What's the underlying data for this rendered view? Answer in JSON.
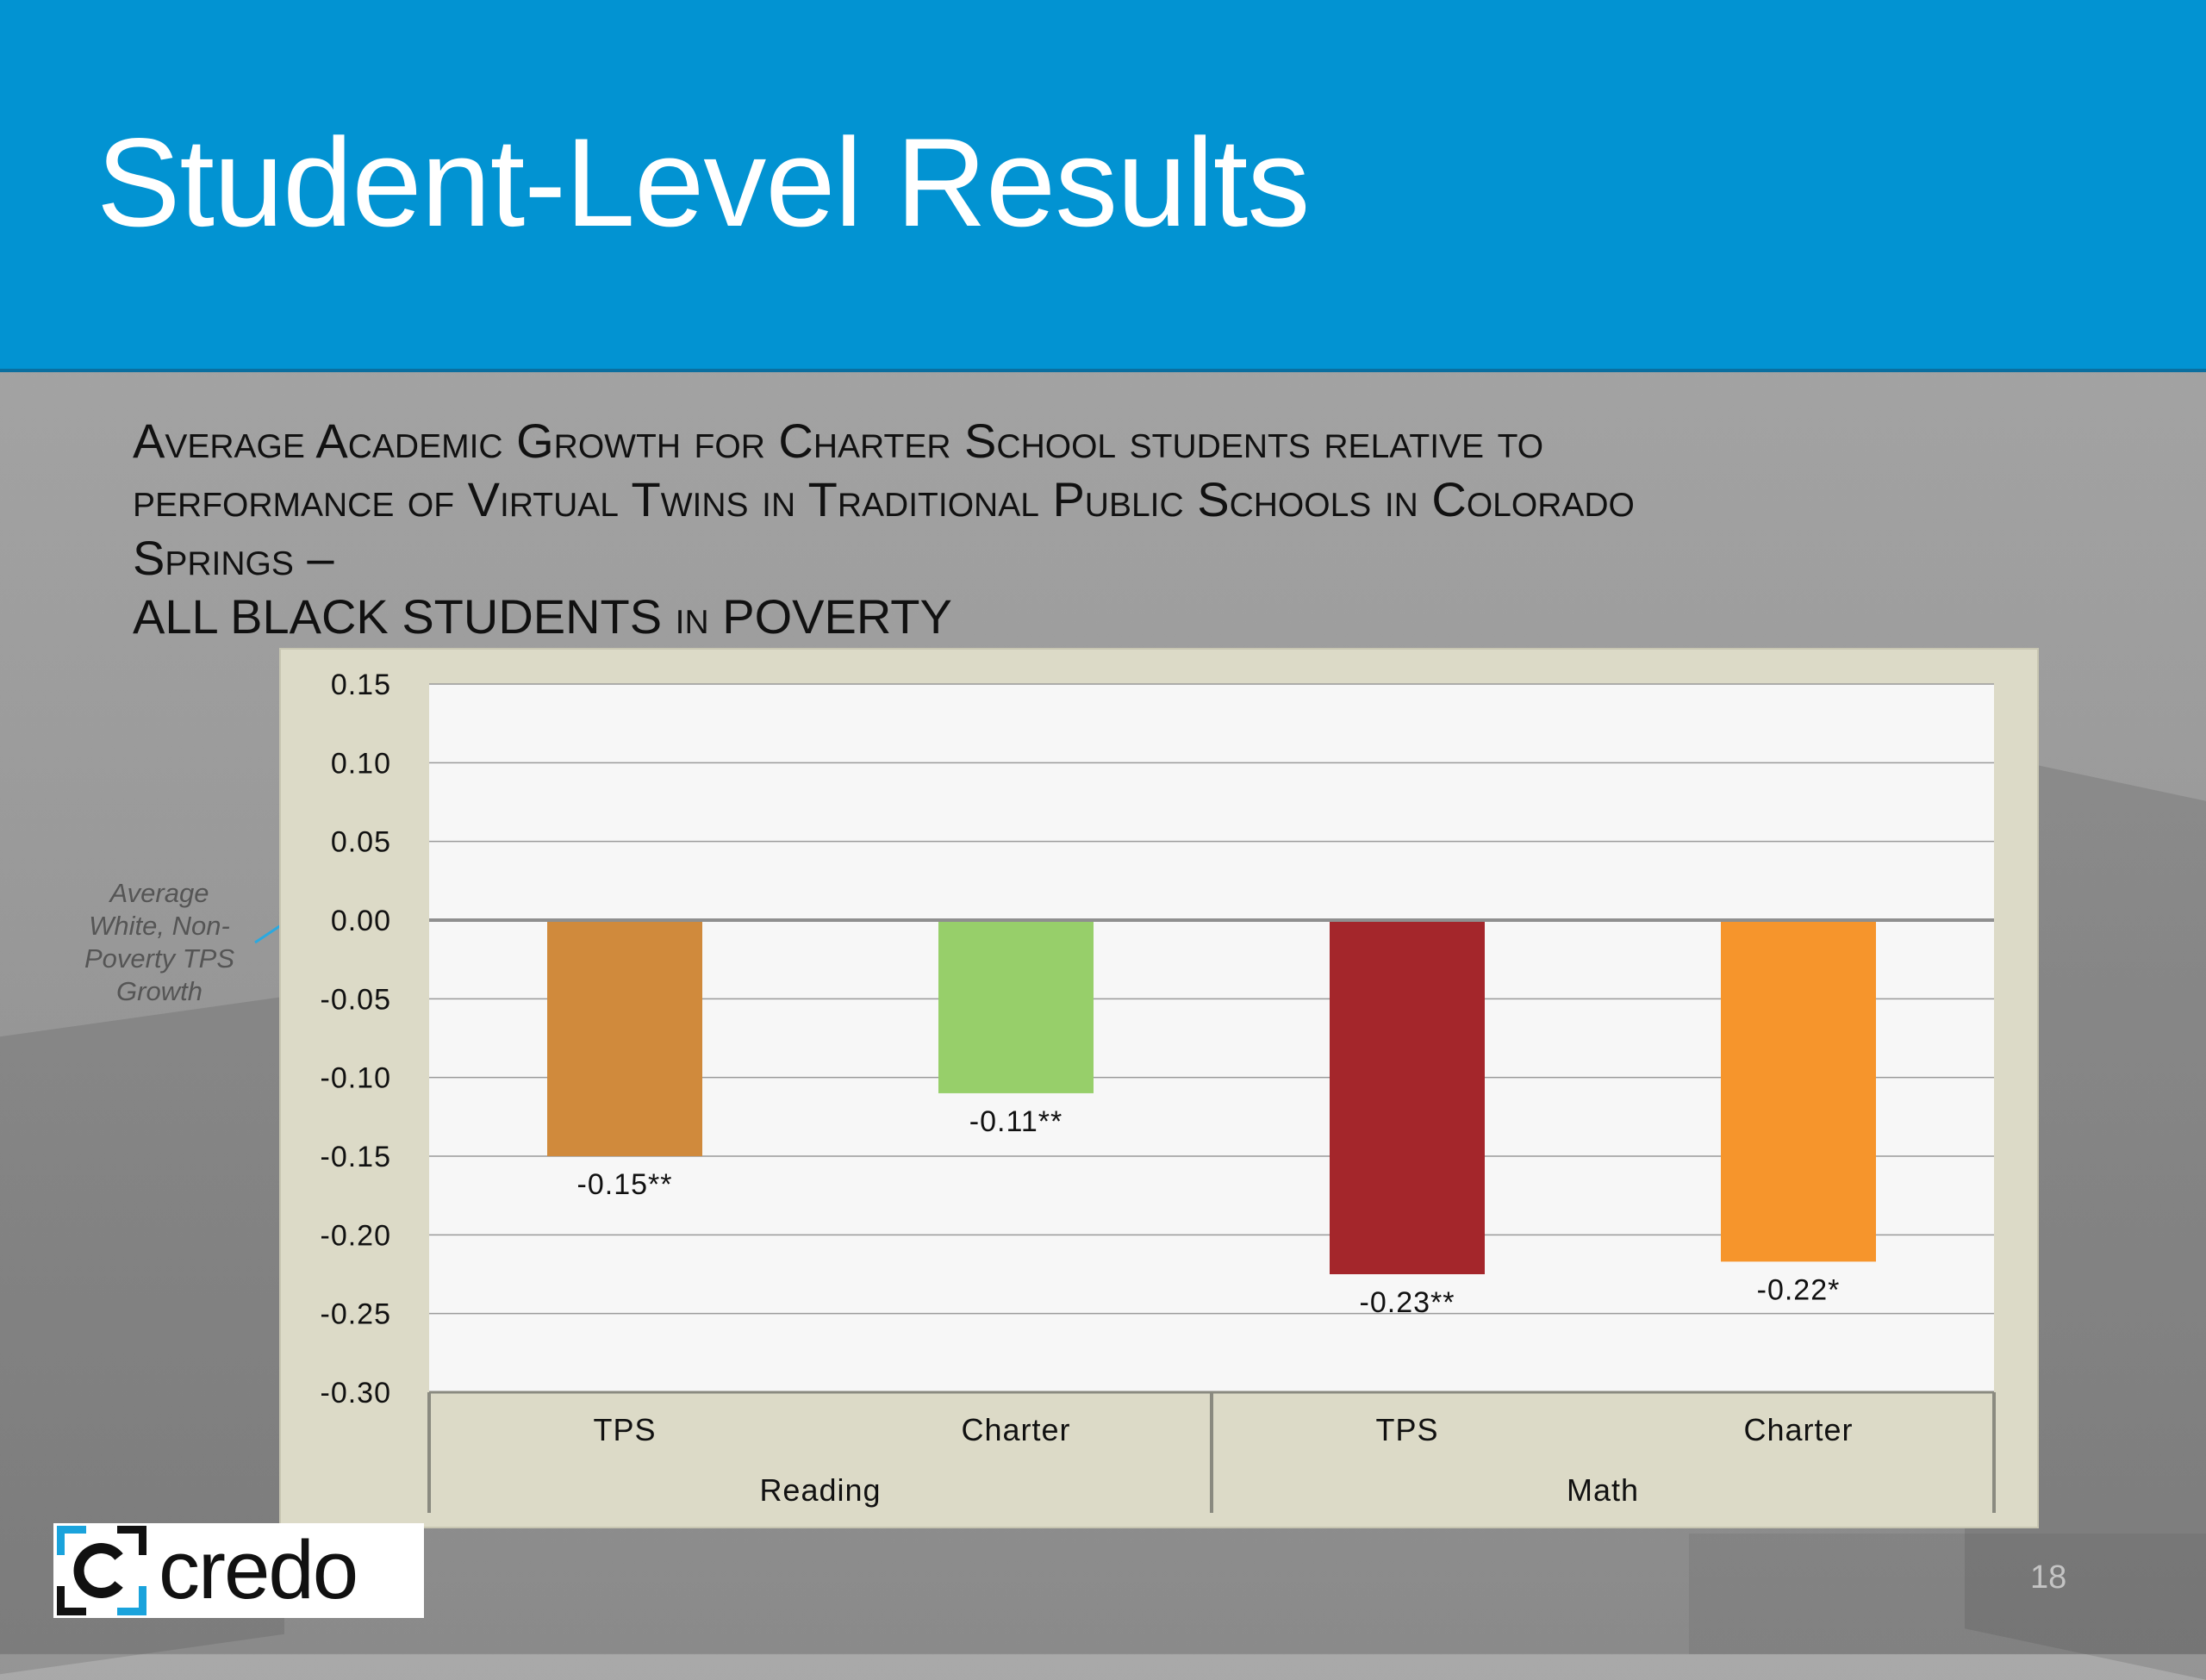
{
  "slide": {
    "title": "Student-Level Results",
    "subtitle_lines": [
      "Average Academic Growth for Charter School students relative to",
      "performance of Virtual Twins in Traditional Public Schools in Colorado",
      "Springs –",
      "ALL BLACK STUDENTS in POVERTY"
    ],
    "annotation": "Average White, Non-Poverty TPS Growth",
    "page_number": "18",
    "logo_text": "credo"
  },
  "chart_data": {
    "type": "bar",
    "ylim": [
      -0.3,
      0.15
    ],
    "yticks": [
      "0.15",
      "0.10",
      "0.05",
      "0.00",
      "-0.05",
      "-0.10",
      "-0.15",
      "-0.20",
      "-0.25",
      "-0.30"
    ],
    "groups": [
      {
        "name": "Reading",
        "categories": [
          "TPS",
          "Charter"
        ]
      },
      {
        "name": "Math",
        "categories": [
          "TPS",
          "Charter"
        ]
      }
    ],
    "bars": [
      {
        "group": "Reading",
        "category": "TPS",
        "value": -0.15,
        "label": "-0.15**",
        "color": "#d08a3c"
      },
      {
        "group": "Reading",
        "category": "Charter",
        "value": -0.11,
        "label": "-0.11**",
        "color": "#97cf6a"
      },
      {
        "group": "Math",
        "category": "TPS",
        "value": -0.225,
        "label": "-0.23**",
        "color": "#a4262b"
      },
      {
        "group": "Math",
        "category": "Charter",
        "value": -0.217,
        "label": "-0.22*",
        "color": "#f6952c"
      }
    ],
    "grid": true,
    "legend": "none"
  }
}
